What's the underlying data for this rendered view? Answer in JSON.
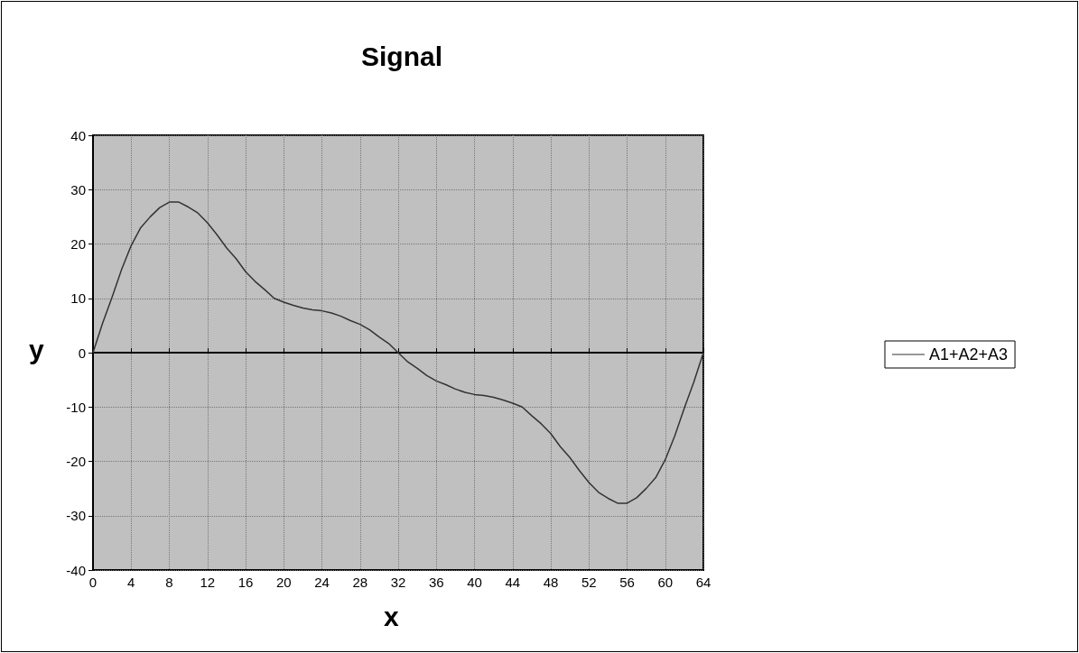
{
  "chart_data": {
    "type": "line",
    "title": "Signal",
    "xlabel": "x",
    "ylabel": "y",
    "x": [
      0,
      1,
      2,
      3,
      4,
      5,
      6,
      7,
      8,
      9,
      10,
      11,
      12,
      13,
      14,
      15,
      16,
      17,
      18,
      19,
      20,
      21,
      22,
      23,
      24,
      25,
      26,
      27,
      28,
      29,
      30,
      31,
      32,
      33,
      34,
      35,
      36,
      37,
      38,
      39,
      40,
      41,
      42,
      43,
      44,
      45,
      46,
      47,
      48,
      49,
      50,
      51,
      52,
      53,
      54,
      55,
      56,
      57,
      58,
      59,
      60,
      61,
      62,
      63,
      64
    ],
    "series": [
      {
        "name": "A1+A2+A3",
        "color": "#333333",
        "values": [
          0,
          5.4,
          10.2,
          15.3,
          19.7,
          23,
          25,
          26.7,
          27.7,
          27.7,
          26.8,
          25.7,
          23.9,
          21.7,
          19.3,
          17.3,
          14.9,
          13.1,
          11.6,
          10,
          9.3,
          8.7,
          8.2,
          7.9,
          7.7,
          7.3,
          6.7,
          5.9,
          5.2,
          4.2,
          2.9,
          1.7,
          0,
          -1.7,
          -2.9,
          -4.2,
          -5.2,
          -5.9,
          -6.7,
          -7.3,
          -7.7,
          -7.9,
          -8.2,
          -8.7,
          -9.3,
          -10,
          -11.6,
          -13.1,
          -14.9,
          -17.3,
          -19.3,
          -21.7,
          -23.9,
          -25.7,
          -26.8,
          -27.7,
          -27.7,
          -26.7,
          -25,
          -23,
          -19.7,
          -15.3,
          -10.2,
          -5.4,
          0
        ]
      }
    ],
    "xlim": [
      0,
      64
    ],
    "xticks": [
      0,
      4,
      8,
      12,
      16,
      20,
      24,
      28,
      32,
      36,
      40,
      44,
      48,
      52,
      56,
      60,
      64
    ],
    "ylim": [
      -40,
      40
    ],
    "yticks": [
      -40,
      -30,
      -20,
      -10,
      0,
      10,
      20,
      30,
      40
    ],
    "grid": true,
    "legend": "right",
    "marker": "none",
    "line_style": "solid"
  }
}
